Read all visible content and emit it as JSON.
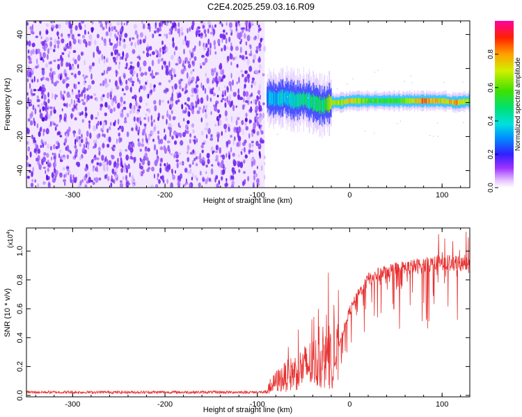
{
  "title": "C2E4.2025.259.03.16.R09",
  "chart_data": [
    {
      "type": "heatmap",
      "name": "spectrogram",
      "xlabel": "Height of straight line (km)",
      "ylabel": "Frequency (Hz)",
      "xlim": [
        -350,
        130
      ],
      "ylim": [
        -50,
        48
      ],
      "xticks": [
        -300,
        -200,
        -100,
        0,
        100
      ],
      "yticks": [
        -40,
        -20,
        0,
        20,
        40
      ],
      "noise_region_x": [
        -350,
        -92
      ],
      "signal_track": [
        {
          "x": -90,
          "y": 3,
          "amp": 0.3
        },
        {
          "x": -80,
          "y": 2,
          "amp": 0.35
        },
        {
          "x": -70,
          "y": 3,
          "amp": 0.35
        },
        {
          "x": -60,
          "y": 1,
          "amp": 0.4
        },
        {
          "x": -50,
          "y": 2,
          "amp": 0.45
        },
        {
          "x": -40,
          "y": 0,
          "amp": 0.45
        },
        {
          "x": -30,
          "y": -2,
          "amp": 0.5
        },
        {
          "x": -20,
          "y": 0,
          "amp": 0.7
        },
        {
          "x": -10,
          "y": 0,
          "amp": 0.65
        },
        {
          "x": 0,
          "y": 1,
          "amp": 0.75
        },
        {
          "x": 20,
          "y": 1,
          "amp": 0.55
        },
        {
          "x": 40,
          "y": 1,
          "amp": 0.55
        },
        {
          "x": 60,
          "y": 1,
          "amp": 0.6
        },
        {
          "x": 80,
          "y": 1,
          "amp": 0.85
        },
        {
          "x": 100,
          "y": 1,
          "amp": 0.7
        },
        {
          "x": 115,
          "y": 0,
          "amp": 0.8
        },
        {
          "x": 130,
          "y": 1,
          "amp": 0.6
        }
      ],
      "colorbar": {
        "label": "Normalized spectral amplitude",
        "range": [
          0,
          1
        ],
        "ticks": [
          "0.0",
          "0.2",
          "0.4",
          "0.6",
          "0.8"
        ],
        "tick_values": [
          0,
          0.2,
          0.4,
          0.6,
          0.8
        ]
      }
    },
    {
      "type": "line",
      "name": "snr",
      "xlabel": "Height of straight line (km)",
      "ylabel": "SNR (10 * v/v)",
      "scale_label": "(x10",
      "scale_exp": "4",
      "scale_close": ")",
      "xlim": [
        -350,
        130
      ],
      "ylim": [
        -0.01,
        1.16
      ],
      "xticks": [
        -300,
        -200,
        -100,
        0,
        100
      ],
      "yticks": [
        "0.0",
        "0.2",
        "0.4",
        "0.6",
        "0.8",
        "1.0"
      ],
      "ytick_values": [
        0,
        0.2,
        0.4,
        0.6,
        0.8,
        1.0
      ],
      "series_color": "#e83030",
      "envelope": [
        {
          "x": -350,
          "y": 0.02
        },
        {
          "x": -92,
          "y": 0.02
        },
        {
          "x": -80,
          "y": 0.12
        },
        {
          "x": -60,
          "y": 0.2
        },
        {
          "x": -40,
          "y": 0.28
        },
        {
          "x": -20,
          "y": 0.3
        },
        {
          "x": -12,
          "y": 0.35
        },
        {
          "x": 0,
          "y": 0.6
        },
        {
          "x": 10,
          "y": 0.72
        },
        {
          "x": 20,
          "y": 0.82
        },
        {
          "x": 40,
          "y": 0.88
        },
        {
          "x": 60,
          "y": 0.9
        },
        {
          "x": 80,
          "y": 0.92
        },
        {
          "x": 100,
          "y": 0.94
        },
        {
          "x": 130,
          "y": 0.92
        }
      ]
    }
  ]
}
